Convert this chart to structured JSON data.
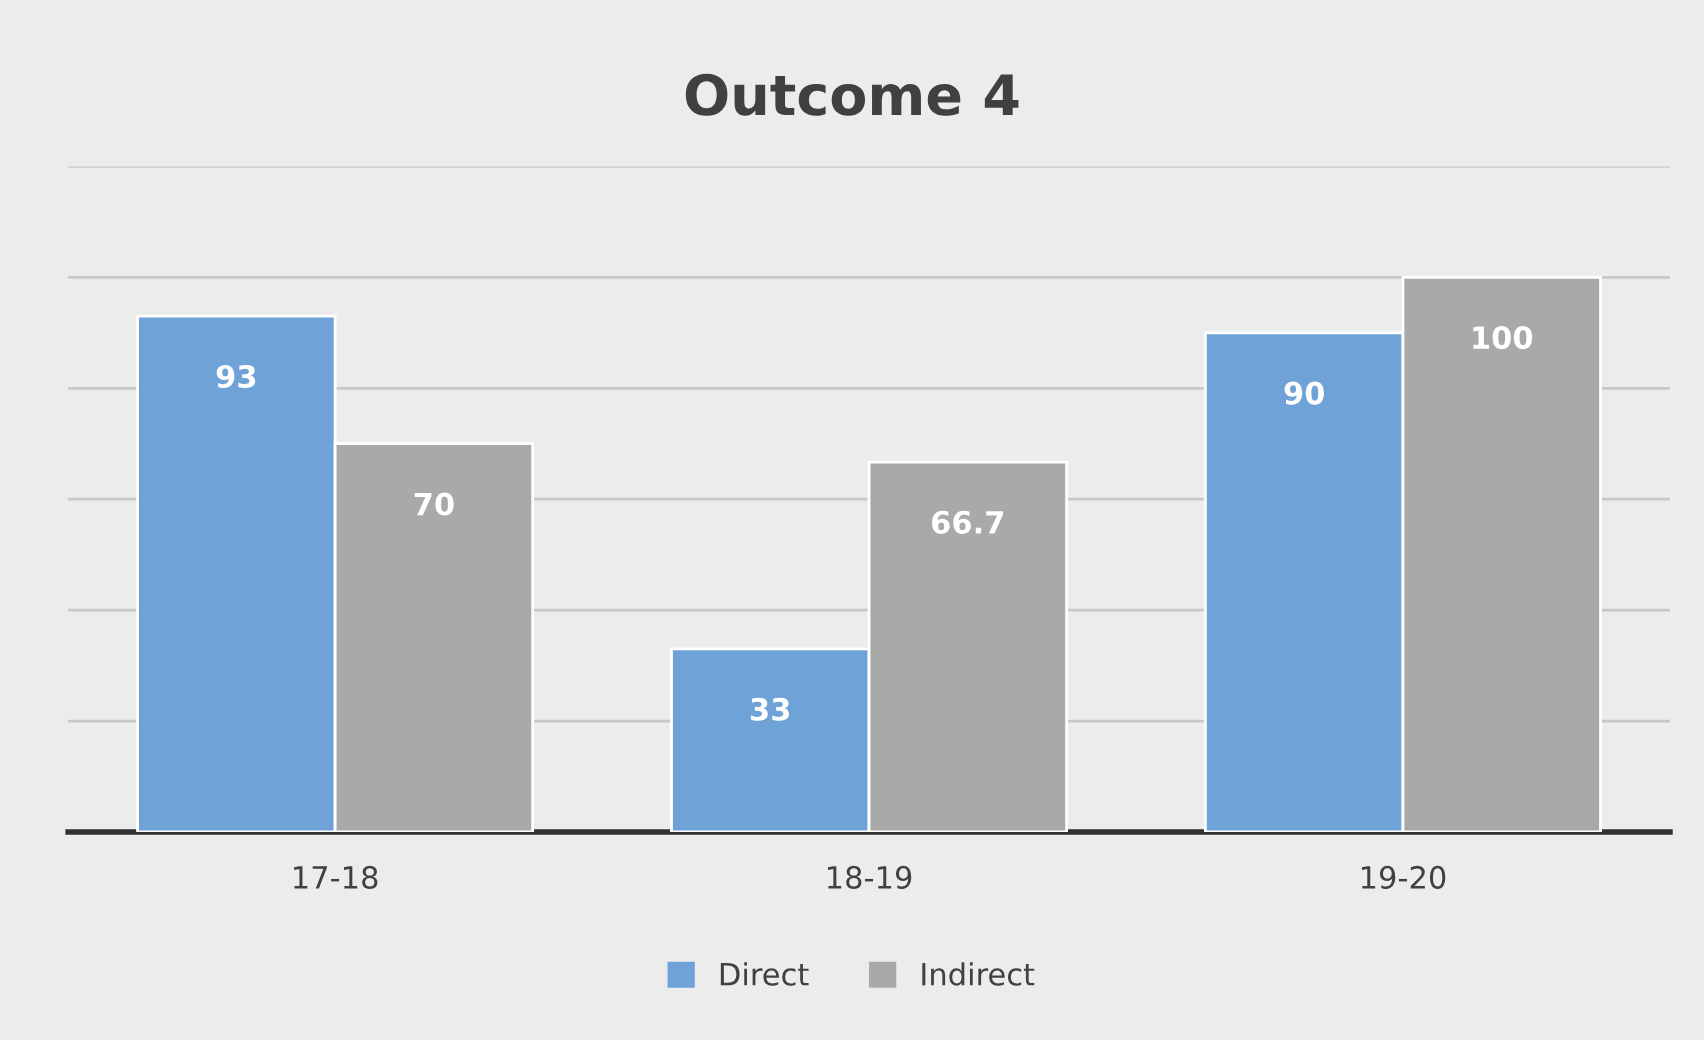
{
  "chart_data": {
    "type": "bar",
    "title": "Outcome 4",
    "categories": [
      "17-18",
      "18-19",
      "19-20"
    ],
    "series": [
      {
        "name": "Direct",
        "color": "#6fa3d8",
        "values": [
          93,
          33,
          90
        ]
      },
      {
        "name": "Indirect",
        "color": "#a9a9a9",
        "values": [
          70,
          66.7,
          100
        ]
      }
    ],
    "ylim": [
      0,
      120
    ],
    "yticks": [
      {
        "value": 0,
        "label": null
      },
      {
        "value": 20,
        "label": null
      },
      {
        "value": 40,
        "label": null
      },
      {
        "value": 60,
        "label": null
      },
      {
        "value": 80,
        "label": null
      },
      {
        "value": 100,
        "label": null
      },
      {
        "value": 120,
        "label": null
      }
    ],
    "tick_labels": "x",
    "grid": "y",
    "legend": "bottom",
    "data_labels": true
  }
}
